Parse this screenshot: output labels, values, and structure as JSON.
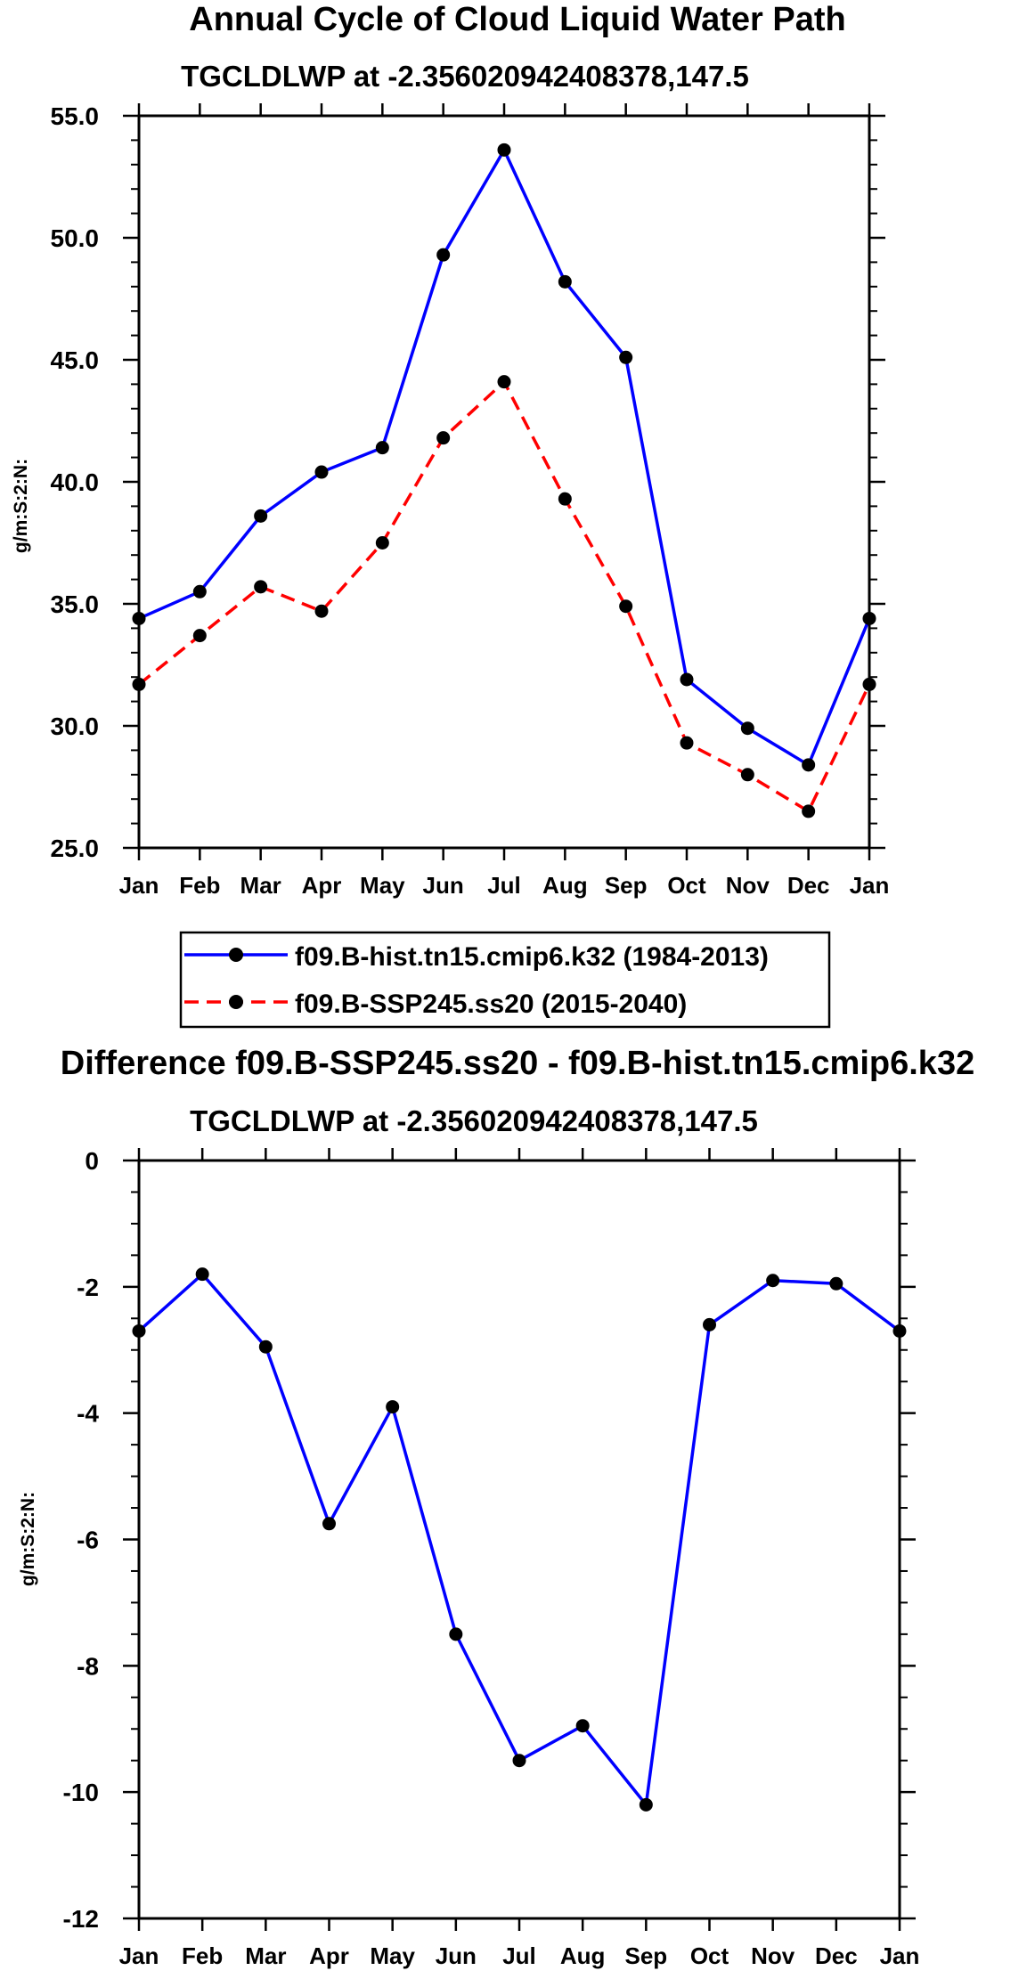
{
  "chart_data": [
    {
      "type": "line",
      "title": "Annual Cycle of Cloud Liquid Water Path",
      "subtitle": "TGCLDLWP at -2.356020942408378,147.5",
      "xlabel": "",
      "ylabel": "g/m:S:2:N:",
      "categories": [
        "Jan",
        "Feb",
        "Mar",
        "Apr",
        "May",
        "Jun",
        "Jul",
        "Aug",
        "Sep",
        "Oct",
        "Nov",
        "Dec",
        "Jan"
      ],
      "ylim": [
        25,
        55
      ],
      "yticks": [
        "25.0",
        "30.0",
        "35.0",
        "40.0",
        "45.0",
        "50.0",
        "55.0"
      ],
      "series": [
        {
          "name": "f09.B-hist.tn15.cmip6.k32 (1984-2013)",
          "color": "#0000ff",
          "dashed": false,
          "values": [
            34.4,
            35.5,
            38.6,
            40.4,
            41.4,
            49.3,
            53.6,
            48.2,
            45.1,
            31.9,
            29.9,
            28.4,
            34.4
          ]
        },
        {
          "name": "f09.B-SSP245.ss20 (2015-2040)",
          "color": "#ff0000",
          "dashed": true,
          "values": [
            31.7,
            33.7,
            35.7,
            34.7,
            37.5,
            41.8,
            44.1,
            39.3,
            34.9,
            29.3,
            28.0,
            26.5,
            31.7
          ]
        }
      ]
    },
    {
      "type": "line",
      "title": "Difference f09.B-SSP245.ss20 - f09.B-hist.tn15.cmip6.k32",
      "subtitle": "TGCLDLWP at -2.356020942408378,147.5",
      "xlabel": "",
      "ylabel": "g/m:S:2:N:",
      "categories": [
        "Jan",
        "Feb",
        "Mar",
        "Apr",
        "May",
        "Jun",
        "Jul",
        "Aug",
        "Sep",
        "Oct",
        "Nov",
        "Dec",
        "Jan"
      ],
      "ylim": [
        -12,
        0
      ],
      "yticks": [
        "-12",
        "-10",
        "-8",
        "-6",
        "-4",
        "-2",
        "0"
      ],
      "series": [
        {
          "name": "Difference",
          "color": "#0000ff",
          "dashed": false,
          "values": [
            -2.7,
            -1.8,
            -2.95,
            -5.75,
            -3.9,
            -7.5,
            -9.5,
            -8.95,
            -10.2,
            -2.6,
            -1.9,
            -1.95,
            -2.7
          ]
        }
      ]
    }
  ]
}
